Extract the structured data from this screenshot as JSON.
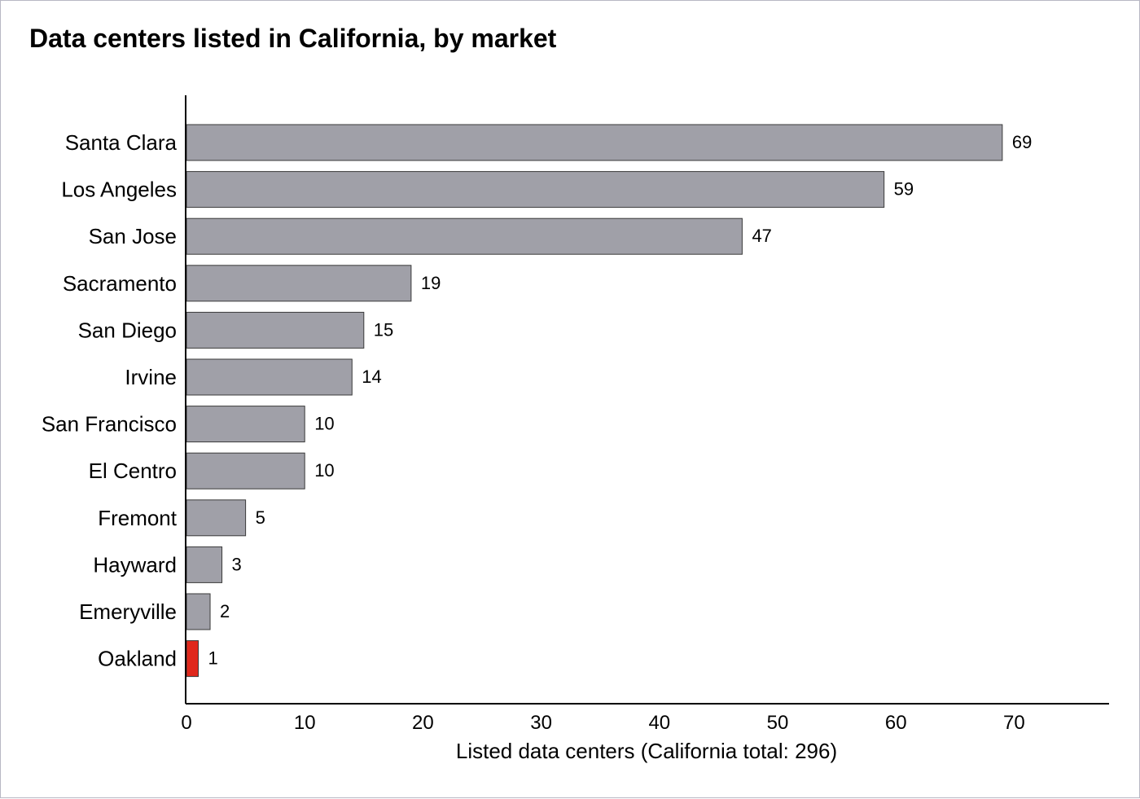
{
  "colors": {
    "bar": "#a0a0a8",
    "bar_stroke": "#3a3a3a",
    "highlight": "#e0281c",
    "highlight_label": "#c00000",
    "axis": "#000000"
  },
  "chart_data": {
    "type": "bar",
    "orientation": "horizontal",
    "title": "Data centers listed in California, by market",
    "xlabel": "Listed data centers (California total: 296)",
    "ylabel": "",
    "categories": [
      "Santa Clara",
      "Los Angeles",
      "San Jose",
      "Sacramento",
      "San Diego",
      "Irvine",
      "San Francisco",
      "El Centro",
      "Fremont",
      "Hayward",
      "Emeryville",
      "Oakland"
    ],
    "values": [
      69,
      59,
      47,
      19,
      15,
      14,
      10,
      10,
      5,
      3,
      2,
      1
    ],
    "highlight_category": "Oakland",
    "xticks": [
      0,
      10,
      20,
      30,
      40,
      50,
      60,
      70
    ],
    "xlim": [
      0,
      78
    ],
    "grid": false,
    "legend": "none"
  }
}
